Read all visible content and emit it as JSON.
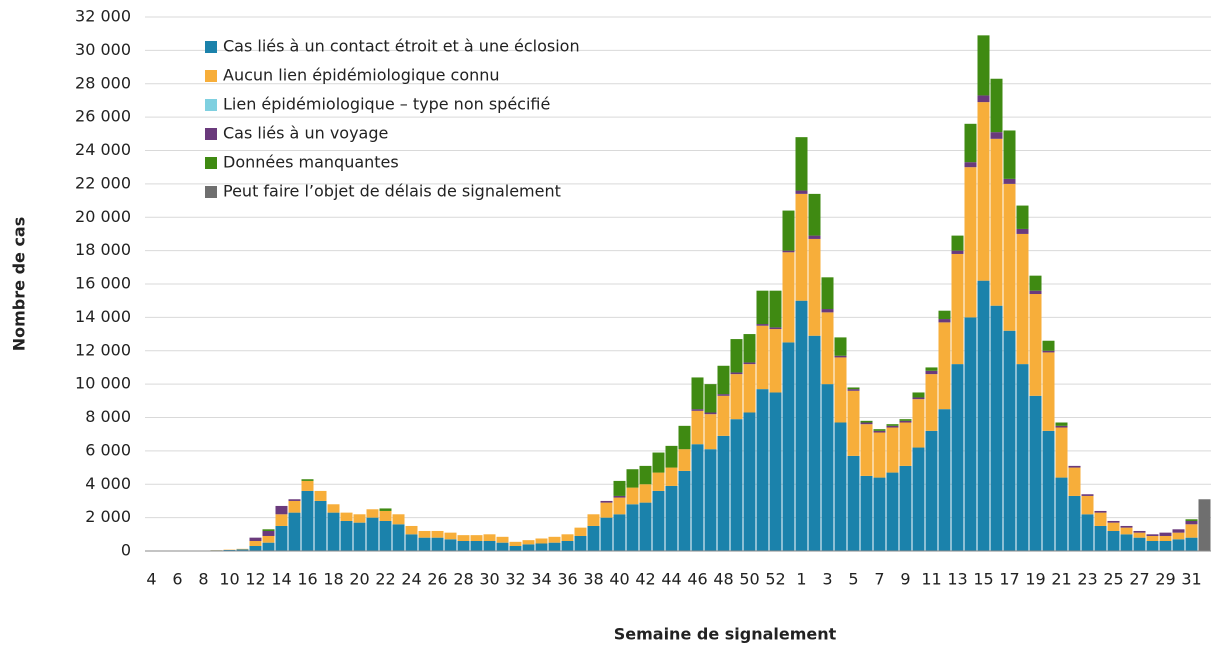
{
  "chart_data": {
    "type": "stacked_bar",
    "x_label": "Semaine de signalement",
    "y_label": "Nombre de cas",
    "categories": [
      "4",
      null,
      "6",
      null,
      "8",
      null,
      "10",
      null,
      "12",
      null,
      "14",
      null,
      "16",
      null,
      "18",
      null,
      "20",
      null,
      "22",
      null,
      "24",
      null,
      "26",
      null,
      "28",
      null,
      "30",
      null,
      "32",
      null,
      "34",
      null,
      "36",
      null,
      "38",
      null,
      "40",
      null,
      "42",
      null,
      "44",
      null,
      "46",
      null,
      "48",
      null,
      "50",
      null,
      "52",
      null,
      "1",
      null,
      "3",
      null,
      "5",
      null,
      "7",
      null,
      "9",
      null,
      "11",
      null,
      "13",
      null,
      "15",
      null,
      "17",
      null,
      "19",
      null,
      "21",
      null,
      "23",
      null,
      "25",
      null,
      "27",
      null,
      "29",
      null,
      "31",
      null
    ],
    "series": [
      {
        "name": "Cas liés à un contact étroit et à une éclosion",
        "color": "#1b82ab",
        "values": [
          10,
          10,
          10,
          20,
          30,
          40,
          60,
          100,
          300,
          500,
          1500,
          2300,
          3600,
          3000,
          2300,
          1800,
          1700,
          2000,
          1800,
          1600,
          1000,
          800,
          800,
          700,
          600,
          600,
          600,
          500,
          300,
          400,
          450,
          500,
          600,
          900,
          1500,
          2000,
          2200,
          2800,
          2900,
          3600,
          3900,
          4800,
          6400,
          6100,
          6900,
          7900,
          8300,
          9700,
          9500,
          12500,
          15000,
          12900,
          10000,
          7700,
          5700,
          4500,
          4400,
          4700,
          5100,
          6200,
          7200,
          8500,
          11200,
          14000,
          16200,
          14700,
          13200,
          11200,
          9300,
          7200,
          4400,
          3300,
          2200,
          1500,
          1200,
          1000,
          800,
          600,
          600,
          700,
          800,
          0
        ]
      },
      {
        "name": "Aucun lien épidémiologique connu",
        "color": "#f7ae3a",
        "values": [
          0,
          0,
          0,
          0,
          0,
          10,
          20,
          30,
          300,
          400,
          700,
          700,
          600,
          600,
          500,
          500,
          500,
          500,
          600,
          600,
          500,
          400,
          400,
          400,
          350,
          350,
          400,
          350,
          250,
          250,
          300,
          350,
          400,
          500,
          700,
          900,
          1000,
          1000,
          1100,
          1100,
          1100,
          1300,
          2000,
          2100,
          2400,
          2700,
          2900,
          3800,
          3800,
          5400,
          6400,
          5800,
          4300,
          3900,
          3900,
          3100,
          2700,
          2700,
          2600,
          2900,
          3400,
          5200,
          6600,
          9000,
          10700,
          10000,
          8800,
          7800,
          6100,
          4700,
          3000,
          1700,
          1100,
          800,
          500,
          400,
          300,
          300,
          300,
          400,
          800,
          0
        ]
      },
      {
        "name": "Lien épidémiologique – type non spécifié",
        "color": "#7fd0e0",
        "values": [
          0,
          0,
          0,
          0,
          0,
          0,
          0,
          0,
          0,
          0,
          0,
          0,
          0,
          0,
          0,
          0,
          0,
          0,
          0,
          0,
          0,
          0,
          0,
          0,
          0,
          0,
          0,
          0,
          0,
          0,
          0,
          0,
          0,
          0,
          0,
          0,
          0,
          0,
          0,
          0,
          0,
          0,
          0,
          0,
          0,
          0,
          0,
          0,
          0,
          0,
          0,
          0,
          0,
          0,
          0,
          0,
          0,
          0,
          0,
          0,
          0,
          0,
          0,
          0,
          0,
          0,
          0,
          0,
          0,
          0,
          0,
          0,
          0,
          0,
          0,
          0,
          0,
          0,
          0,
          0,
          0,
          0
        ]
      },
      {
        "name": "Cas liés à un voyage",
        "color": "#6a3a7c",
        "values": [
          0,
          0,
          0,
          0,
          0,
          0,
          0,
          0,
          200,
          300,
          500,
          100,
          0,
          0,
          0,
          0,
          0,
          0,
          0,
          0,
          0,
          0,
          0,
          0,
          0,
          0,
          0,
          0,
          0,
          0,
          0,
          0,
          0,
          0,
          0,
          100,
          100,
          0,
          0,
          0,
          0,
          0,
          100,
          100,
          100,
          100,
          100,
          100,
          100,
          100,
          200,
          200,
          200,
          100,
          100,
          100,
          100,
          100,
          100,
          100,
          200,
          200,
          200,
          300,
          400,
          400,
          300,
          300,
          200,
          100,
          100,
          100,
          100,
          100,
          100,
          100,
          100,
          100,
          200,
          200,
          200,
          0
        ]
      },
      {
        "name": "Données manquantes",
        "color": "#3f8a12",
        "values": [
          0,
          0,
          0,
          0,
          0,
          0,
          0,
          0,
          0,
          100,
          0,
          0,
          100,
          0,
          0,
          0,
          0,
          0,
          150,
          0,
          0,
          0,
          0,
          0,
          0,
          0,
          0,
          0,
          0,
          0,
          0,
          0,
          0,
          0,
          0,
          0,
          900,
          1100,
          1100,
          1200,
          1300,
          1400,
          1900,
          1700,
          1700,
          2000,
          1700,
          2000,
          2200,
          2400,
          3200,
          2500,
          1900,
          1100,
          100,
          100,
          100,
          100,
          100,
          300,
          200,
          500,
          900,
          2300,
          3600,
          3200,
          2900,
          1400,
          900,
          600,
          200,
          0,
          0,
          0,
          0,
          0,
          0,
          0,
          0,
          0,
          100,
          0
        ]
      },
      {
        "name": "Peut faire l’objet de délais de signalement",
        "color": "#6f6f6f",
        "values": [
          0,
          0,
          0,
          0,
          0,
          0,
          0,
          0,
          0,
          0,
          0,
          0,
          0,
          0,
          0,
          0,
          0,
          0,
          0,
          0,
          0,
          0,
          0,
          0,
          0,
          0,
          0,
          0,
          0,
          0,
          0,
          0,
          0,
          0,
          0,
          0,
          0,
          0,
          0,
          0,
          0,
          0,
          0,
          0,
          0,
          0,
          0,
          0,
          0,
          0,
          0,
          0,
          0,
          0,
          0,
          0,
          0,
          0,
          0,
          0,
          0,
          0,
          0,
          0,
          0,
          0,
          0,
          0,
          0,
          0,
          0,
          0,
          0,
          0,
          0,
          0,
          0,
          0,
          0,
          0,
          0,
          3100
        ]
      }
    ],
    "ylim": [
      0,
      32000
    ],
    "yticks": [
      0,
      {
        "value": 2000,
        "label": "2 000"
      },
      {
        "value": 4000,
        "label": "4 000"
      },
      {
        "value": 6000,
        "label": "6 000"
      },
      {
        "value": 8000,
        "label": "8 000"
      },
      {
        "value": 10000,
        "label": "10 000"
      },
      {
        "value": 12000,
        "label": "12 000"
      },
      {
        "value": 14000,
        "label": "14 000"
      },
      {
        "value": 16000,
        "label": "16 000"
      },
      {
        "value": 18000,
        "label": "18 000"
      },
      {
        "value": 20000,
        "label": "20 000"
      },
      {
        "value": 22000,
        "label": "22 000"
      },
      {
        "value": 24000,
        "label": "24 000"
      },
      {
        "value": 26000,
        "label": "26 000"
      },
      {
        "value": 28000,
        "label": "28 000"
      },
      {
        "value": 30000,
        "label": "30 000"
      },
      {
        "value": 32000,
        "label": "32 000"
      }
    ],
    "grid": true,
    "legend": "upper left"
  }
}
